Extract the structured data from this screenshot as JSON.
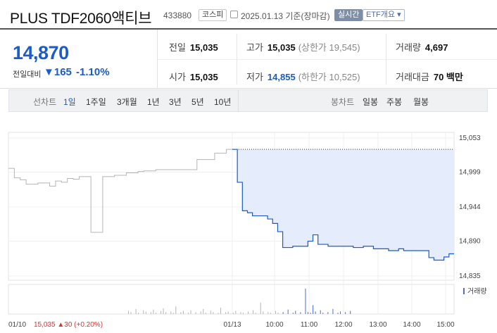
{
  "header": {
    "title": "PLUS TDF2060액티브",
    "code": "433880",
    "market_badge": "코스피",
    "date_text": "2025.01.13 기준(장마감)",
    "realtime_badge": "실시간",
    "etf_badge": "ETF개요 ▾"
  },
  "summary": {
    "price": "14,870",
    "prev_label": "전일대비",
    "change": "▼165",
    "change_pct": "-1.10%",
    "prev_close_label": "전일",
    "prev_close": "15,035",
    "high_label": "고가",
    "high": "15,035",
    "upper_limit": "(상한가 19,545)",
    "volume_label": "거래량",
    "volume": "4,697",
    "open_label": "시가",
    "open": "15,035",
    "low_label": "저가",
    "low": "14,855",
    "lower_limit": "(하한가 10,525)",
    "amount_label": "거래대금",
    "amount": "70 백만"
  },
  "tabs": {
    "line_label": "선차트",
    "line_items": [
      "1일",
      "1주일",
      "3개월",
      "1년",
      "3년",
      "5년",
      "10년"
    ],
    "line_active": "1일",
    "candle_label": "봉차트",
    "candle_items": [
      "일봉",
      "주봉",
      "월봉"
    ]
  },
  "colors": {
    "accent": "#1b5cc8",
    "up": "#e4312b",
    "area": "#e5ecfb"
  },
  "chart_data": {
    "type": "area",
    "y_ticks": [
      "15,053",
      "14,999",
      "14,944",
      "14,890",
      "14,835"
    ],
    "ylim": [
      14835,
      15053
    ],
    "x_ticks": [
      "01/10",
      "01/13",
      "10:00",
      "11:00",
      "12:00",
      "13:00",
      "14:00",
      "15:00"
    ],
    "previous_day": {
      "label": "01/10",
      "close_text": "15,035",
      "change_text": "▲30",
      "change_pct_text": "(+0.20%)",
      "values": [
        15005,
        14990,
        14987,
        14980,
        14980,
        14982,
        14982,
        14977,
        14985,
        14983,
        14989,
        14988,
        14992,
        14992,
        14904,
        14904,
        14992,
        14992,
        14994,
        14994,
        14998,
        14998,
        15000,
        15001,
        15001,
        15003,
        15003,
        15003,
        15003,
        15003,
        15003,
        15003,
        15019,
        15019,
        15019,
        15029,
        15029,
        15035,
        15035
      ]
    },
    "today": {
      "label": "01/13",
      "values": [
        15035,
        14983,
        14938,
        14935,
        14930,
        14930,
        14930,
        14925,
        14918,
        14905,
        14880,
        14880,
        14882,
        14882,
        14882,
        14890,
        14900,
        14885,
        14885,
        14882,
        14882,
        14882,
        14882,
        14882,
        14880,
        14880,
        14882,
        14882,
        14878,
        14878,
        14878,
        14875,
        14875,
        14878,
        14875,
        14875,
        14875,
        14875,
        14875,
        14864,
        14860,
        14860,
        14865,
        14870,
        14870
      ],
      "reference": 15035
    },
    "volume_label": "거래량",
    "volume": [
      5,
      3,
      0,
      8,
      2,
      0,
      6,
      4,
      0,
      3,
      7,
      2,
      0,
      5,
      9,
      3,
      0,
      4,
      2,
      12,
      0,
      3,
      5,
      0,
      2,
      6,
      0,
      3,
      0,
      4,
      8,
      2,
      0,
      5,
      3,
      0,
      2,
      10,
      0,
      3,
      4,
      0,
      2,
      5,
      0,
      3,
      2,
      0,
      4,
      0,
      6,
      2,
      0,
      18,
      4,
      0,
      3,
      2,
      0,
      5,
      2,
      0,
      3,
      0,
      7,
      0,
      2,
      5,
      0,
      3,
      0,
      40,
      3,
      2,
      14,
      4,
      0,
      6,
      2,
      0,
      3,
      0,
      8,
      0,
      2,
      4,
      0,
      3,
      0,
      5
    ]
  }
}
